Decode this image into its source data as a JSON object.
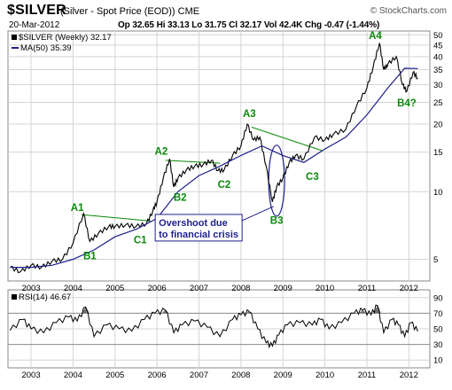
{
  "header": {
    "ticker": "$SILVER",
    "description": "(Silver - Spot Price (EOD)) CME",
    "watermark": "© StockCharts.com",
    "date": "20-Mar-2012",
    "quote": "Op 32.65  Hi 33.13  Lo 31.75  Cl 32.17  Vol 42.4K  Chg -0.47 (-1.44%)"
  },
  "legend": {
    "price_label": "$SILVER (Weekly) 32.17",
    "ma_label": "MA(50) 35.39",
    "rsi_label": "RSI(14) 46.67"
  },
  "chart_data": [
    {
      "type": "line",
      "series": [
        {
          "name": "$SILVER (Weekly)",
          "x": [
            2002.5,
            2002.75,
            2003.0,
            2003.25,
            2003.5,
            2003.75,
            2004.0,
            2004.25,
            2004.4,
            2004.6,
            2004.85,
            2005.0,
            2005.25,
            2005.5,
            2005.75,
            2005.9,
            2006.0,
            2006.15,
            2006.3,
            2006.4,
            2006.5,
            2006.7,
            2006.9,
            2007.1,
            2007.3,
            2007.45,
            2007.6,
            2007.8,
            2008.0,
            2008.15,
            2008.3,
            2008.45,
            2008.6,
            2008.75,
            2008.85,
            2009.0,
            2009.15,
            2009.3,
            2009.5,
            2009.75,
            2010.0,
            2010.2,
            2010.5,
            2010.75,
            2011.0,
            2011.15,
            2011.3,
            2011.4,
            2011.5,
            2011.7,
            2011.85,
            2011.95,
            2012.1,
            2012.21
          ],
          "values": [
            4.6,
            4.4,
            4.7,
            4.6,
            4.9,
            5.0,
            5.9,
            8.0,
            6.0,
            6.5,
            7.0,
            7.0,
            7.1,
            7.0,
            7.2,
            8.2,
            9.0,
            11.5,
            14.0,
            10.5,
            11.5,
            12.5,
            13.0,
            13.2,
            13.8,
            12.4,
            12.5,
            14.5,
            16.0,
            20.0,
            17.0,
            17.5,
            13.0,
            9.0,
            10.5,
            11.5,
            13.5,
            14.5,
            14.0,
            17.5,
            17.0,
            18.0,
            19.0,
            24.0,
            29.0,
            36.0,
            46.0,
            35.0,
            37.0,
            40.0,
            30.0,
            28.0,
            34.0,
            32.17
          ]
        },
        {
          "name": "MA(50)",
          "x": [
            2002.5,
            2003.0,
            2003.5,
            2004.0,
            2004.5,
            2005.0,
            2005.5,
            2006.0,
            2006.5,
            2007.0,
            2007.5,
            2008.0,
            2008.5,
            2009.0,
            2009.5,
            2010.0,
            2010.5,
            2011.0,
            2011.5,
            2011.9,
            2012.21
          ],
          "values": [
            4.6,
            4.6,
            4.7,
            5.0,
            5.5,
            6.3,
            6.8,
            7.6,
            10.0,
            11.8,
            13.0,
            14.5,
            16.0,
            14.5,
            13.5,
            15.5,
            17.5,
            22.0,
            29.0,
            35.5,
            35.39
          ]
        }
      ],
      "annotations": [
        {
          "text": "A1",
          "x": 2004.1,
          "y": 8.2
        },
        {
          "text": "B1",
          "x": 2004.4,
          "y": 5.0
        },
        {
          "text": "C1",
          "x": 2005.6,
          "y": 5.9
        },
        {
          "text": "A2",
          "x": 2006.1,
          "y": 14.6
        },
        {
          "text": "B2",
          "x": 2006.55,
          "y": 9.1
        },
        {
          "text": "C2",
          "x": 2007.6,
          "y": 10.4
        },
        {
          "text": "A3",
          "x": 2008.2,
          "y": 21.5
        },
        {
          "text": "B3",
          "x": 2008.85,
          "y": 7.2
        },
        {
          "text": "C3",
          "x": 2009.7,
          "y": 11.3
        },
        {
          "text": "A4",
          "x": 2011.2,
          "y": 48.0
        },
        {
          "text": "B4?",
          "x": 2011.95,
          "y": 24.0
        },
        {
          "text": "Overshoot due\nto financial crisis",
          "x": 2006.0,
          "y": 7.1
        }
      ],
      "y_scale": "log",
      "ylim": [
        4.0,
        52.0
      ],
      "xlim": [
        2002.45,
        2012.5
      ],
      "x_tick_labels": [
        "2003",
        "2004",
        "2005",
        "2006",
        "2007",
        "2008",
        "2009",
        "2010",
        "2011",
        "2012"
      ],
      "y_tick_labels": [
        "5",
        "10",
        "15",
        "20",
        "25",
        "30",
        "35",
        "40",
        "45",
        "50"
      ],
      "grid": true
    },
    {
      "type": "line",
      "series": [
        {
          "name": "RSI(14)",
          "x": [
            2002.5,
            2002.8,
            2003.0,
            2003.3,
            2003.6,
            2003.9,
            2004.1,
            2004.3,
            2004.5,
            2004.8,
            2005.1,
            2005.4,
            2005.7,
            2005.95,
            2006.2,
            2006.4,
            2006.6,
            2006.9,
            2007.2,
            2007.5,
            2007.8,
            2008.0,
            2008.2,
            2008.4,
            2008.6,
            2008.75,
            2008.9,
            2009.1,
            2009.4,
            2009.7,
            2009.9,
            2010.1,
            2010.4,
            2010.7,
            2010.9,
            2011.1,
            2011.25,
            2011.4,
            2011.6,
            2011.75,
            2011.9,
            2012.05,
            2012.21
          ],
          "values": [
            48,
            62,
            50,
            45,
            58,
            65,
            60,
            78,
            40,
            55,
            50,
            47,
            62,
            70,
            74,
            45,
            55,
            60,
            52,
            40,
            62,
            68,
            72,
            50,
            32,
            28,
            42,
            55,
            58,
            55,
            62,
            50,
            58,
            70,
            74,
            68,
            80,
            45,
            62,
            55,
            40,
            58,
            46.67
          ]
        }
      ],
      "ylim": [
        0,
        100
      ],
      "y_tick_labels": [
        "10",
        "30",
        "50",
        "70",
        "90"
      ],
      "reference_lines": [
        30,
        70
      ],
      "x_tick_labels": [
        "2003",
        "2004",
        "2005",
        "2006",
        "2007",
        "2008",
        "2009",
        "2010",
        "2011",
        "2012"
      ]
    }
  ],
  "colors": {
    "price_line": "#000000",
    "ma_line": "#1d1f8c",
    "annotation": "#0a8a0a",
    "callout_text": "#1d1f8c",
    "rsi_fill": "#6e6e6e",
    "grid": "#d4d4d4"
  }
}
